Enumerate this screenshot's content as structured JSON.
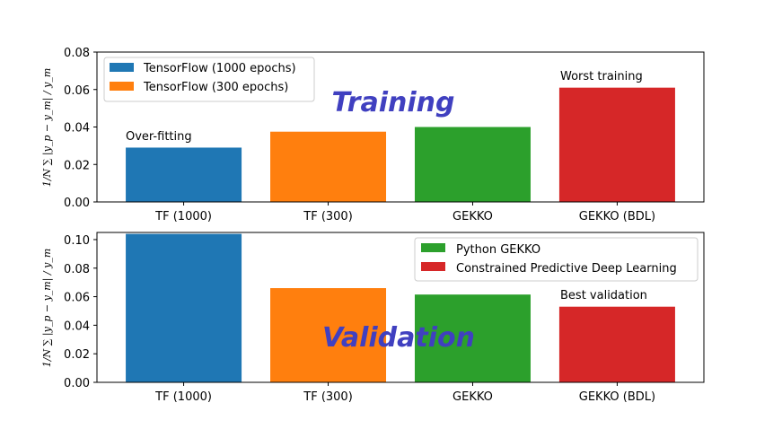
{
  "chart_data": [
    {
      "type": "bar",
      "panel": "top",
      "title_text": "Training",
      "ylabel": "1/N ∑ |y_p − y_m| / y_m",
      "ylim": [
        0,
        0.08
      ],
      "yticks": [
        "0.00",
        "0.02",
        "0.04",
        "0.06",
        "0.08"
      ],
      "categories": [
        "TF (1000)",
        "TF (300)",
        "GEKKO",
        "GEKKO (BDL)"
      ],
      "values": [
        0.029,
        0.0375,
        0.04,
        0.061
      ],
      "colors": [
        "#1f77b4",
        "#ff7f0e",
        "#2ca02c",
        "#d62728"
      ],
      "annotations": [
        {
          "text": "Over-fitting",
          "bar": 0
        },
        {
          "text": "Worst training",
          "bar": 3
        }
      ],
      "legend": {
        "placement": "top-left",
        "entries": [
          {
            "label": "TensorFlow (1000 epochs)",
            "color": "#1f77b4"
          },
          {
            "label": "TensorFlow (300 epochs)",
            "color": "#ff7f0e"
          }
        ]
      }
    },
    {
      "type": "bar",
      "panel": "bottom",
      "title_text": "Validation",
      "ylabel": "1/N ∑ |y_p − y_m| / y_m",
      "ylim": [
        0,
        0.105
      ],
      "yticks": [
        "0.00",
        "0.02",
        "0.04",
        "0.06",
        "0.08",
        "0.10"
      ],
      "categories": [
        "TF (1000)",
        "TF (300)",
        "GEKKO",
        "GEKKO (BDL)"
      ],
      "values": [
        0.104,
        0.066,
        0.0615,
        0.053
      ],
      "colors": [
        "#1f77b4",
        "#ff7f0e",
        "#2ca02c",
        "#d62728"
      ],
      "annotations": [
        {
          "text": "Best validation",
          "bar": 3
        }
      ],
      "legend": {
        "placement": "top-right",
        "entries": [
          {
            "label": "Python GEKKO",
            "color": "#2ca02c"
          },
          {
            "label": "Constrained Predictive Deep Learning",
            "color": "#d62728"
          }
        ]
      }
    }
  ]
}
